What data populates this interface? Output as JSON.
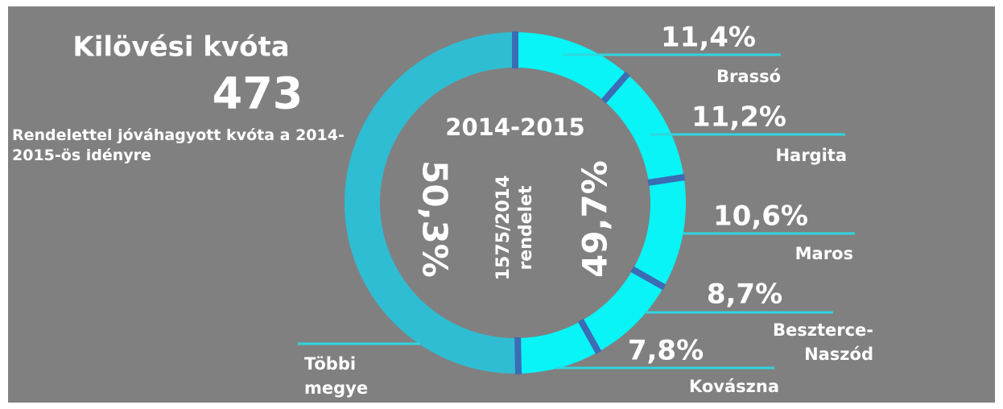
{
  "title": "Kilövési kvóta",
  "total": 473,
  "subtitle": "Rendelettel jóváhagyott kvóta a 2014-2015-ös idényre",
  "chart_data": {
    "type": "pie",
    "donut": true,
    "center_title": "2014-2015",
    "center_note": "1575/2014 rendelet",
    "annotation": {
      "value": 49.7,
      "label": "49,7%"
    },
    "categories": [
      "Brassó",
      "Hargita",
      "Maros",
      "Beszterce-Naszód",
      "Kovászna",
      "Többi megye"
    ],
    "values": [
      11.4,
      11.2,
      10.6,
      8.7,
      7.8,
      50.3
    ],
    "value_labels": [
      "11,4%",
      "11,2%",
      "10,6%",
      "8,7%",
      "7,8%",
      "50,3%"
    ],
    "colors": [
      "#08f4f6",
      "#08f4f6",
      "#08f4f6",
      "#08f4f6",
      "#08f4f6",
      "#2fbdd3"
    ],
    "separator_color": "#3b6cb4"
  }
}
